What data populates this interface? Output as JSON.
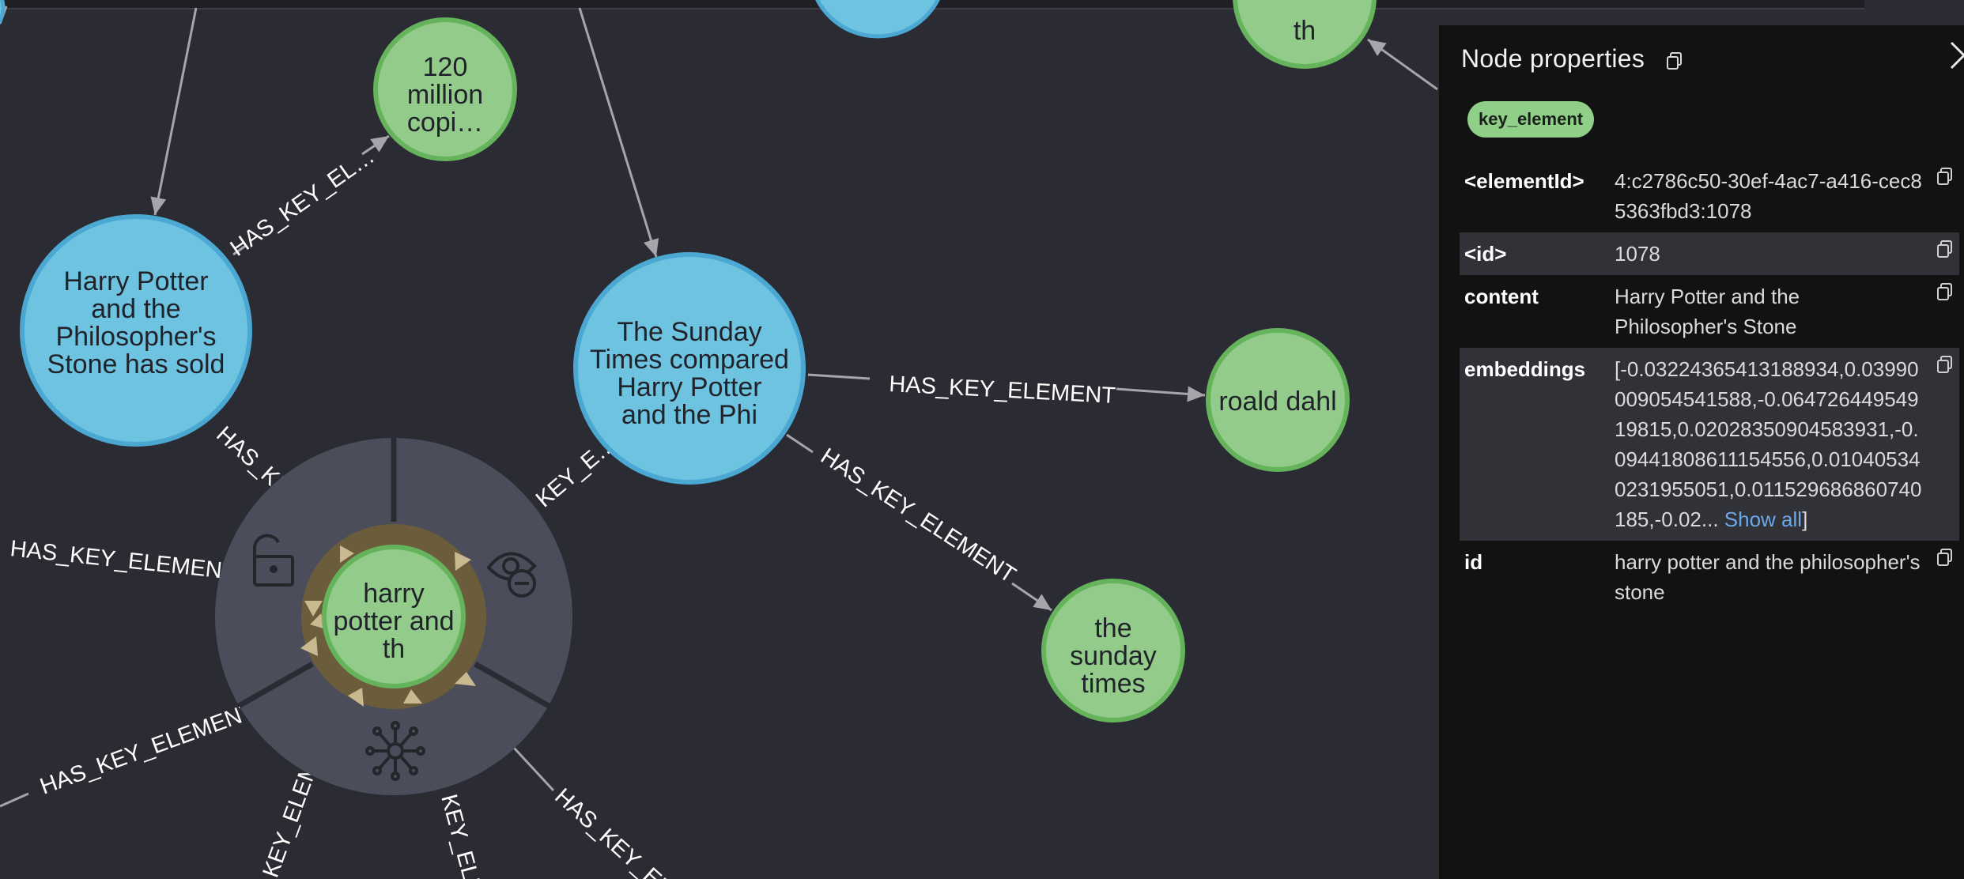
{
  "graph": {
    "nodes": {
      "copies": [
        "120",
        "million",
        "copi…"
      ],
      "hp_sold": [
        "Harry Potter",
        "and the",
        "Philosopher's",
        "Stone has sold"
      ],
      "sunday_times_compared": [
        "The Sunday",
        "Times compared",
        "Harry Potter",
        "and the Phi"
      ],
      "roald_dahl": [
        "roald dahl"
      ],
      "the_sunday_times": [
        "the",
        "sunday",
        "times"
      ],
      "top_right": [
        "th"
      ],
      "selected": [
        "harry",
        "potter and",
        "th"
      ]
    },
    "relationships": {
      "r_copies": "HAS_KEY_EL…",
      "r_roald": "HAS_KEY_ELEMENT",
      "r_sunday": "HAS_KEY_ELEMENT",
      "r_left1": "HAS_KEY_ELEMENT",
      "r_left2": "HAS_KEY_ELEMENT",
      "r_hp_sold": "HAS_KE",
      "r_stc": "KEY_E…",
      "r_b1": "KEY_ELEME",
      "r_b2": "KEY_ELEM",
      "r_b3": "HAS_KEY_EL"
    },
    "colors": {
      "background": "#2a2b33",
      "node_blue": "#6ec3e0",
      "node_blue_border": "#4ba8d2",
      "node_green": "#93cb8b",
      "node_green_border": "#65b35b",
      "ring": "#4b4d5a",
      "selection_halo": "#6b5d3c",
      "arrow": "#a5a5ab"
    },
    "ring_actions": [
      "unlock-icon",
      "hide-icon",
      "expand-icon"
    ]
  },
  "panel": {
    "title": "Node properties",
    "label_chip": "key_element",
    "properties": [
      {
        "key": "<elementId>",
        "value": "4:c2786c50-30ef-4ac7-a416-cec85363fbd3:1078"
      },
      {
        "key": "<id>",
        "value": "1078"
      },
      {
        "key": "content",
        "value": "Harry Potter and the Philosopher's Stone"
      },
      {
        "key": "embeddings",
        "value": "[-0.03224365413188934,0.03990009054541588,-0.06472644954919815,0.02028350904583931,-0.09441808611154556,0.010405340231955051,0.011529686860740185,-0.02...",
        "show_all": "Show all",
        "closing": "]"
      },
      {
        "key": "id",
        "value": "harry potter and the philosopher's stone"
      }
    ]
  }
}
